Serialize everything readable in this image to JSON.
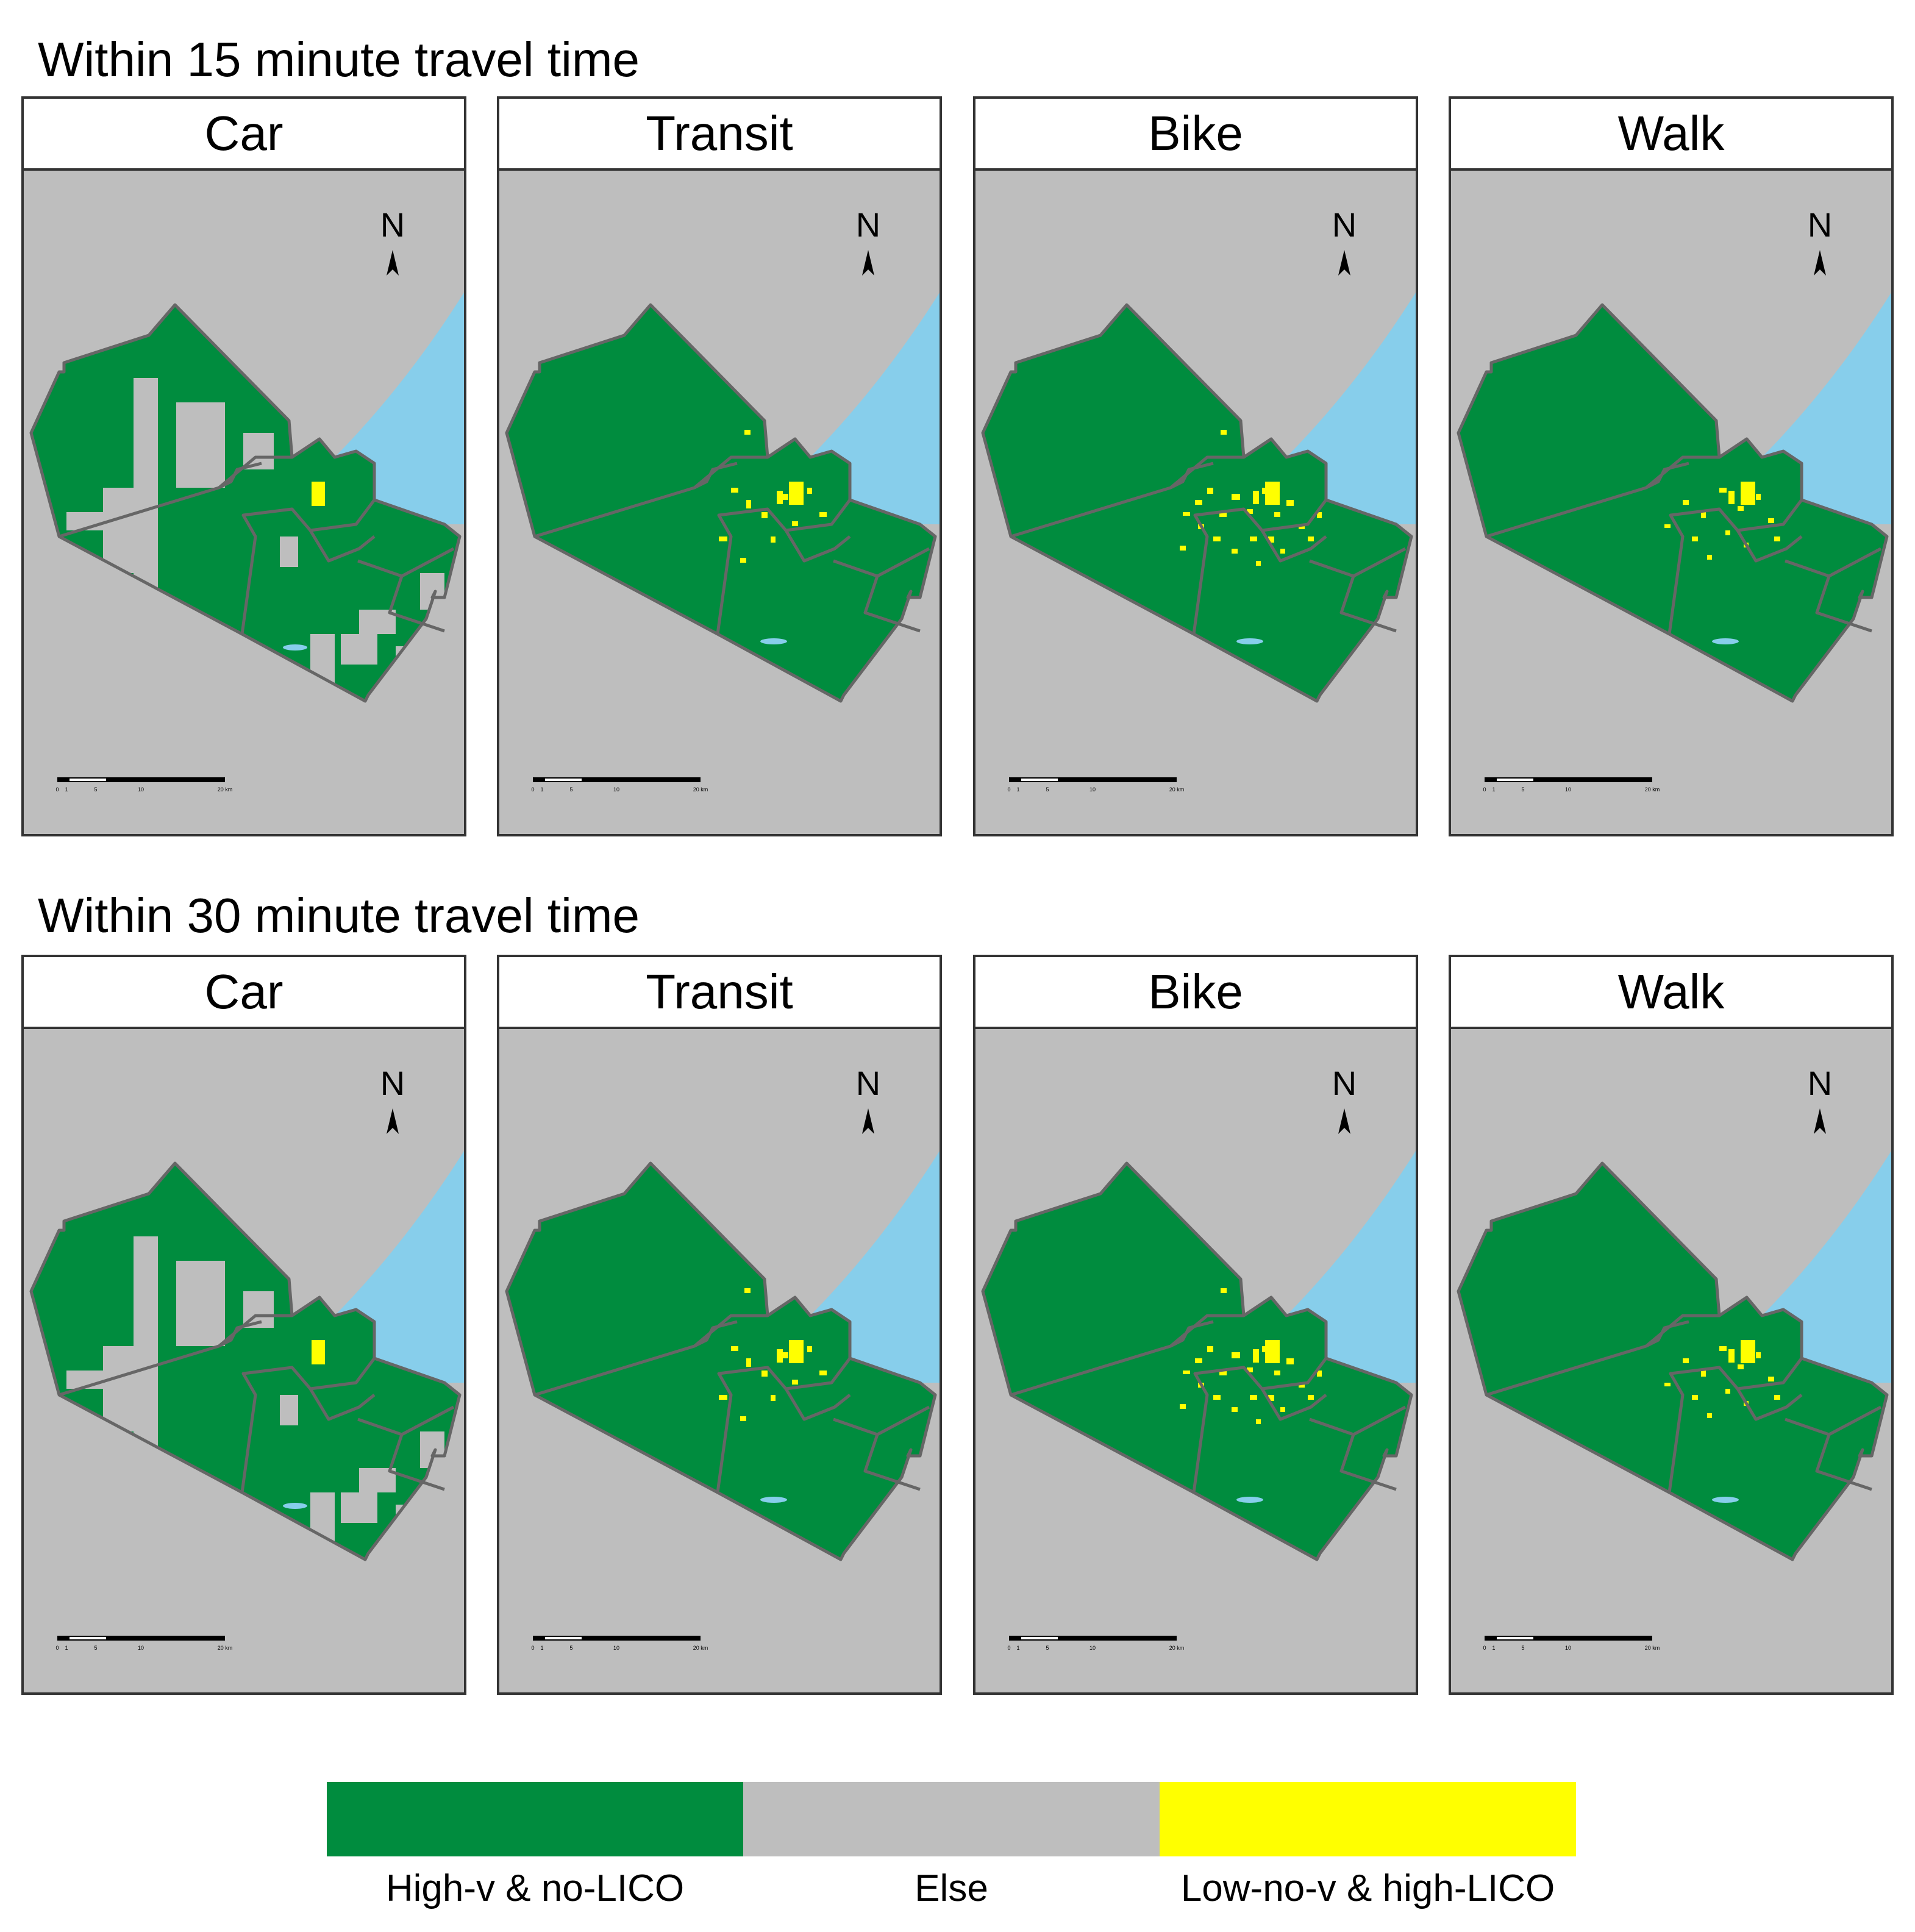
{
  "section_top": {
    "title": "Within 15 minute travel time"
  },
  "section_bottom": {
    "title": "Within 30 minute travel time"
  },
  "modes": [
    "Car",
    "Transit",
    "Bike",
    "Walk"
  ],
  "map_symbols": {
    "north_label": "N",
    "scale_labels": [
      "0",
      "1",
      "5",
      "10",
      "20 km"
    ]
  },
  "colors": {
    "high_v_no_lico": "#008c3e",
    "else": "#bebebe",
    "low_no_v_high_lico": "#ffff00",
    "water": "#87ceeb",
    "boundary": "#666666"
  },
  "legend": {
    "items": [
      {
        "label": "High-v & no-LICO",
        "color": "#008c3e"
      },
      {
        "label": "Else",
        "color": "#bebebe"
      },
      {
        "label": "Low-no-v & high-LICO",
        "color": "#ffff00"
      }
    ]
  }
}
